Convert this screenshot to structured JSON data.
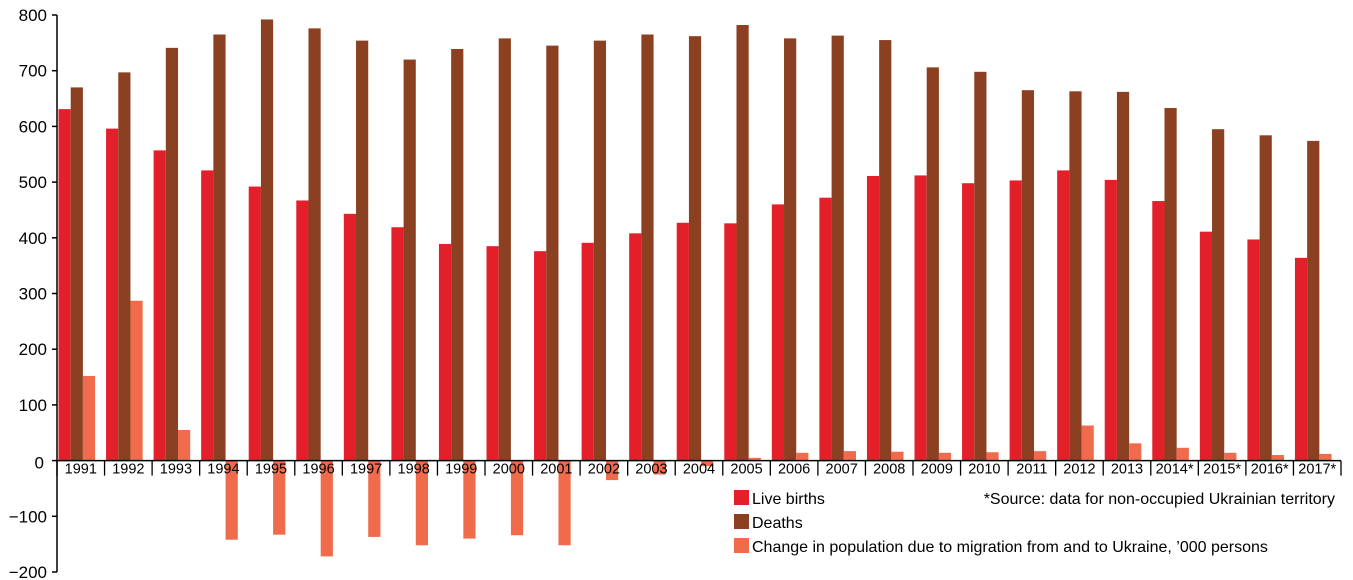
{
  "chart_data": {
    "type": "bar",
    "title": "",
    "xlabel": "",
    "ylabel": "",
    "ylim": [
      -200,
      800
    ],
    "yticks": [
      -200,
      -100,
      0,
      100,
      200,
      300,
      400,
      500,
      600,
      700,
      800
    ],
    "ytick_labels": [
      "−200",
      "−100",
      "0",
      "100",
      "200",
      "300",
      "400",
      "500",
      "600",
      "700",
      "800"
    ],
    "grid": false,
    "legend_position": "bottom-right",
    "categories": [
      "1991",
      "1992",
      "1993",
      "1994",
      "1995",
      "1996",
      "1997",
      "1998",
      "1999",
      "2000",
      "2001",
      "2002",
      "2003",
      "2004",
      "2005",
      "2006",
      "2007",
      "2008",
      "2009",
      "2010",
      "2011",
      "2012",
      "2013",
      "2014*",
      "2015*",
      "2016*",
      "2017*"
    ],
    "series": [
      {
        "name": "Live births",
        "color": "#e3202a",
        "values": [
          631,
          596,
          557,
          521,
          492,
          467,
          443,
          419,
          389,
          385,
          376,
          391,
          408,
          427,
          426,
          460,
          472,
          511,
          512,
          498,
          503,
          521,
          504,
          466,
          411,
          397,
          364
        ]
      },
      {
        "name": "Deaths",
        "color": "#8b4121",
        "values": [
          670,
          697,
          741,
          765,
          792,
          776,
          754,
          720,
          739,
          758,
          745,
          754,
          765,
          762,
          782,
          758,
          763,
          755,
          706,
          698,
          665,
          663,
          662,
          633,
          595,
          584,
          574
        ]
      },
      {
        "name": "Change in population due to migration from and to Ukraine, ’000 persons",
        "color": "#ef6b4c",
        "values": [
          152,
          287,
          55,
          -142,
          -133,
          -172,
          -137,
          -152,
          -140,
          -134,
          -152,
          -35,
          -25,
          -10,
          5,
          14,
          17,
          16,
          14,
          15,
          17,
          63,
          31,
          23,
          14,
          10,
          12
        ]
      }
    ],
    "annotation": "*Source: data for non-occupied Ukrainian territory"
  }
}
